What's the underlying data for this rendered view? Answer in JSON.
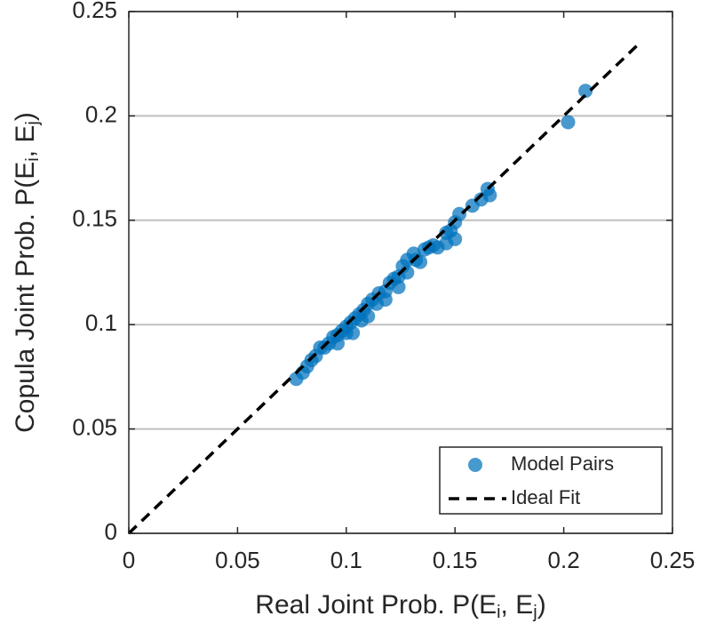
{
  "chart_data": {
    "type": "scatter",
    "xlabel": [
      "Real Joint Prob. P(E",
      "i",
      ", E",
      "j",
      ")"
    ],
    "ylabel": [
      "Copula Joint Prob. P(E",
      "i",
      ", E",
      "j",
      ")"
    ],
    "xlim": [
      0,
      0.25
    ],
    "ylim": [
      0,
      0.25
    ],
    "xticks": [
      0,
      0.05,
      0.1,
      0.15,
      0.2,
      0.25
    ],
    "yticks": [
      0,
      0.05,
      0.1,
      0.15,
      0.2,
      0.25
    ],
    "grid": "y",
    "legend": "lower right",
    "series": [
      {
        "name": "Model Pairs",
        "type": "scatter",
        "color": "#0072bd",
        "x": [
          0.21,
          0.202,
          0.165,
          0.166,
          0.162,
          0.158,
          0.152,
          0.15,
          0.148,
          0.15,
          0.146,
          0.146,
          0.142,
          0.138,
          0.136,
          0.131,
          0.132,
          0.128,
          0.126,
          0.124,
          0.122,
          0.12,
          0.118,
          0.115,
          0.112,
          0.11,
          0.108,
          0.106,
          0.104,
          0.102,
          0.1,
          0.1,
          0.103,
          0.098,
          0.096,
          0.094,
          0.092,
          0.09,
          0.088,
          0.086,
          0.084,
          0.082,
          0.08,
          0.077,
          0.096,
          0.107,
          0.114,
          0.118,
          0.134,
          0.128,
          0.14,
          0.124,
          0.11
        ],
        "y": [
          0.212,
          0.197,
          0.165,
          0.162,
          0.16,
          0.157,
          0.153,
          0.149,
          0.145,
          0.141,
          0.144,
          0.139,
          0.137,
          0.137,
          0.136,
          0.134,
          0.131,
          0.131,
          0.128,
          0.123,
          0.122,
          0.12,
          0.116,
          0.115,
          0.112,
          0.11,
          0.107,
          0.105,
          0.103,
          0.101,
          0.099,
          0.096,
          0.096,
          0.097,
          0.095,
          0.094,
          0.091,
          0.089,
          0.089,
          0.085,
          0.083,
          0.08,
          0.077,
          0.074,
          0.091,
          0.102,
          0.11,
          0.112,
          0.13,
          0.125,
          0.138,
          0.118,
          0.104
        ]
      },
      {
        "name": "Ideal Fit",
        "type": "line",
        "color": "#000000",
        "dash": true,
        "x": [
          0,
          0.235
        ],
        "y": [
          0,
          0.235
        ]
      }
    ]
  }
}
